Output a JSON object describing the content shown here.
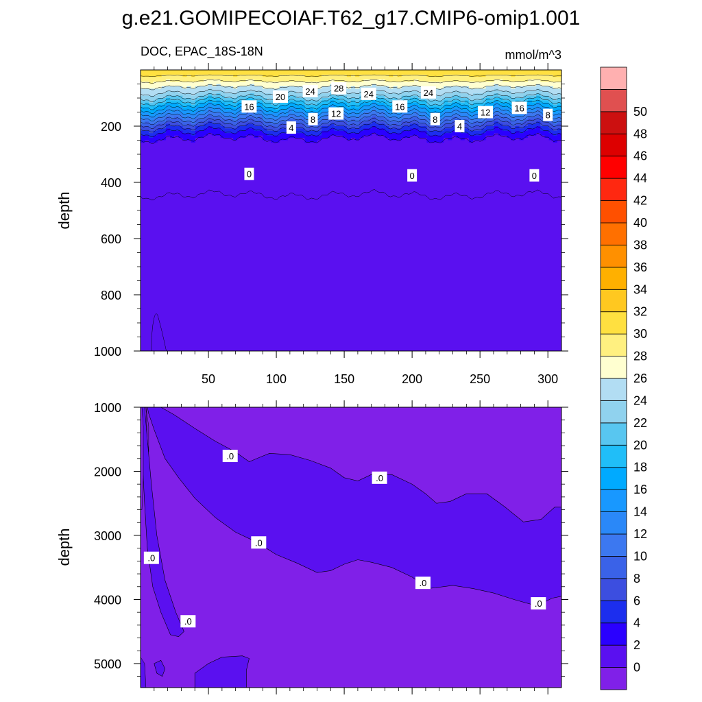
{
  "title": "g.e21.GOMIPECOIAF.T62_g17.CMIP6-omip1.001",
  "left_subtitle": "DOC, EPAC_18S-18N",
  "right_subtitle": "mmol/m^3",
  "ylabel": "depth",
  "colorbar": {
    "labels": [
      "0",
      "2",
      "4",
      "6",
      "8",
      "10",
      "12",
      "14",
      "16",
      "18",
      "20",
      "22",
      "24",
      "26",
      "28",
      "30",
      "32",
      "34",
      "36",
      "38",
      "40",
      "42",
      "44",
      "46",
      "48",
      "50"
    ],
    "colors": [
      "#8020e8",
      "#5a10f0",
      "#2a00ff",
      "#1c2eee",
      "#3c4ee0",
      "#3a62e8",
      "#3c78f0",
      "#2a88f8",
      "#1898ff",
      "#00aaff",
      "#20bef8",
      "#58c6f0",
      "#90d2ee",
      "#b2ddf3",
      "#ffffd0",
      "#fff080",
      "#ffe040",
      "#ffc820",
      "#ffb000",
      "#ff9000",
      "#ff7000",
      "#ff5000",
      "#ff2810",
      "#ff0000",
      "#dd0000",
      "#cc1010",
      "#e05050",
      "#ffb0b0"
    ]
  },
  "chart_data": [
    {
      "type": "contour",
      "panel": "upper",
      "variable": "DOC",
      "region": "EPAC_18S-18N",
      "units": "mmol/m^3",
      "ylabel": "depth",
      "xlabel": "",
      "x_ticks": [
        50,
        100,
        150,
        200,
        250,
        300
      ],
      "y_ticks": [
        200,
        400,
        600,
        800,
        1000
      ],
      "xlim": [
        0,
        310
      ],
      "ylim": [
        0,
        1000
      ],
      "y_inverted": true,
      "contour_interval": 2,
      "depth_levels": [
        10,
        30,
        50,
        70,
        90,
        110,
        130,
        150,
        170,
        190,
        210,
        230,
        250,
        300,
        350,
        390,
        500,
        800,
        1000
      ],
      "profile_values": [
        31,
        29,
        27,
        25,
        23,
        20,
        17,
        14,
        11,
        8,
        5,
        3,
        1.5,
        0.8,
        0.3,
        0.02,
        0,
        0,
        0
      ],
      "line_labels": [
        {
          "text": "16",
          "x": 80,
          "y": 130
        },
        {
          "text": "20",
          "x": 103,
          "y": 95
        },
        {
          "text": "24",
          "x": 125,
          "y": 75
        },
        {
          "text": "28",
          "x": 146,
          "y": 65
        },
        {
          "text": "24",
          "x": 168,
          "y": 85
        },
        {
          "text": "16",
          "x": 191,
          "y": 130
        },
        {
          "text": "24",
          "x": 212,
          "y": 80
        },
        {
          "text": "12",
          "x": 144,
          "y": 155
        },
        {
          "text": "8",
          "x": 127,
          "y": 175
        },
        {
          "text": "4",
          "x": 111,
          "y": 205
        },
        {
          "text": "8",
          "x": 217,
          "y": 175
        },
        {
          "text": "4",
          "x": 235,
          "y": 200
        },
        {
          "text": "12",
          "x": 254,
          "y": 150
        },
        {
          "text": "16",
          "x": 279,
          "y": 135
        },
        {
          "text": "8",
          "x": 300,
          "y": 160
        },
        {
          "text": "0",
          "x": 80,
          "y": 370
        },
        {
          "text": "0",
          "x": 200,
          "y": 375
        },
        {
          "text": "0",
          "x": 290,
          "y": 375
        }
      ]
    },
    {
      "type": "contour",
      "panel": "lower",
      "ylabel": "depth",
      "xlabel": "",
      "y_ticks": [
        1000,
        2000,
        3000,
        4000,
        5000
      ],
      "xlim": [
        0,
        310
      ],
      "ylim": [
        1000,
        5375
      ],
      "y_inverted": true,
      "levels_shown": [
        0
      ],
      "line_labels": [
        {
          "text": ".0",
          "x": 66,
          "y": 1760
        },
        {
          "text": ".0",
          "x": 176,
          "y": 2100
        },
        {
          "text": ".0",
          "x": 87,
          "y": 3110
        },
        {
          "text": ".0",
          "x": 8,
          "y": 3350
        },
        {
          "text": ".0",
          "x": 208,
          "y": 3740
        },
        {
          "text": ".0",
          "x": 293,
          "y": 4060
        },
        {
          "text": ".0",
          "x": 35,
          "y": 4340
        }
      ]
    }
  ]
}
